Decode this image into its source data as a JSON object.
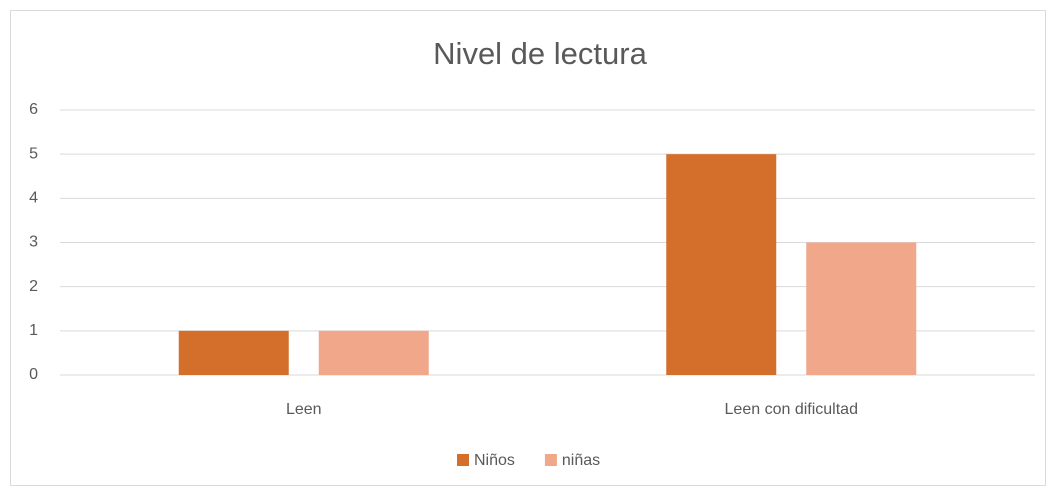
{
  "chart_data": {
    "type": "bar",
    "title": "Nivel de lectura",
    "categories": [
      "Leen",
      "Leen con dificultad"
    ],
    "series": [
      {
        "name": "Niños",
        "color": "#d36f2b",
        "values": [
          1,
          5
        ]
      },
      {
        "name": "niñas",
        "color": "#f1a78a",
        "values": [
          1,
          3
        ]
      }
    ],
    "ylim": [
      0,
      6
    ],
    "yticks": [
      0,
      1,
      2,
      3,
      4,
      5,
      6
    ],
    "grid": true,
    "legend": "bottom"
  }
}
